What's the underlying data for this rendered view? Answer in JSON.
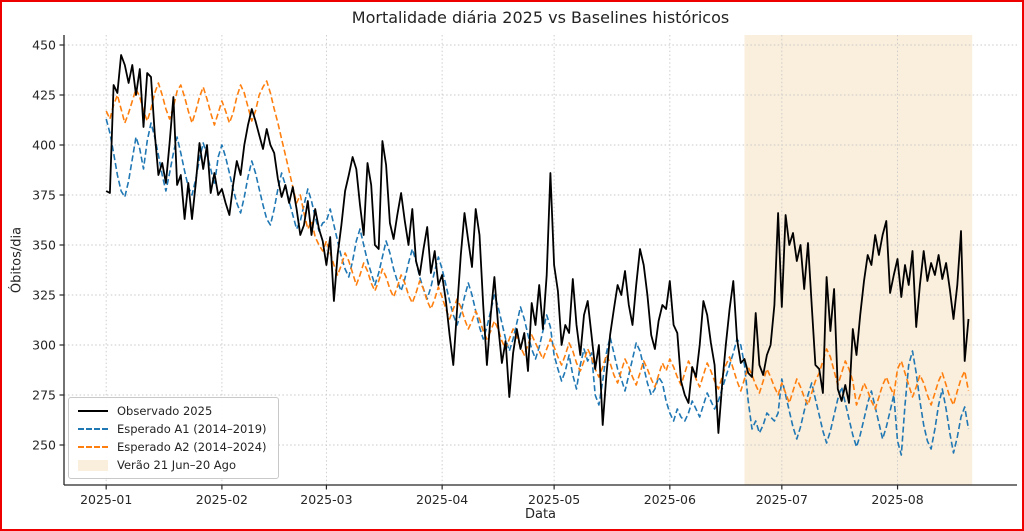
{
  "figure": {
    "border_color": "#ee0000",
    "background": "#ffffff"
  },
  "chart_data": {
    "type": "line",
    "title": "Mortalidade diária 2025 vs Baselines históricos",
    "xlabel": "Data",
    "ylabel": "Óbitos/dia",
    "x_start_date": "2025-01-01",
    "x_end_date": "2025-08-20",
    "n_days": 232,
    "xlim_days": [
      -10.3,
      245
    ],
    "ylim": [
      230,
      455
    ],
    "grid": {
      "show": true,
      "color": "#c9c9c9",
      "style": "dotted"
    },
    "yticks": {
      "values": [
        250,
        275,
        300,
        325,
        350,
        375,
        400,
        425,
        450
      ]
    },
    "xticks": {
      "days": [
        1,
        32,
        60,
        91,
        121,
        152,
        182,
        213
      ],
      "labels": [
        "2025-01",
        "2025-02",
        "2025-03",
        "2025-04",
        "2025-05",
        "2025-06",
        "2025-07",
        "2025-08"
      ]
    },
    "shade": {
      "label": "Verão 21 Jun–20 Ago",
      "day_start": 172,
      "day_end": 233,
      "color": "#faeedc"
    },
    "legend": {
      "position": "lower left"
    },
    "series": [
      {
        "name": "Observado 2025",
        "color": "#000000",
        "style": "solid",
        "width": 1.8,
        "values": [
          377,
          376,
          430,
          426,
          445,
          440,
          431,
          440,
          425,
          438,
          409,
          436,
          434,
          406,
          385,
          391,
          381,
          401,
          424,
          380,
          385,
          363,
          381,
          363,
          381,
          401,
          388,
          400,
          376,
          386,
          375,
          378,
          371,
          365,
          380,
          392,
          385,
          400,
          410,
          418,
          412,
          405,
          398,
          408,
          400,
          396,
          383,
          374,
          380,
          371,
          379,
          368,
          355,
          360,
          372,
          355,
          368,
          358,
          352,
          340,
          354,
          322,
          345,
          360,
          377,
          385,
          394,
          388,
          370,
          355,
          391,
          380,
          350,
          348,
          402,
          390,
          361,
          353,
          365,
          376,
          362,
          350,
          368,
          342,
          335,
          348,
          359,
          336,
          347,
          330,
          335,
          322,
          305,
          290,
          318,
          345,
          366,
          352,
          339,
          368,
          355,
          320,
          290,
          315,
          334,
          310,
          291,
          302,
          274,
          296,
          308,
          298,
          306,
          287,
          321,
          310,
          330,
          308,
          335,
          386,
          340,
          327,
          300,
          310,
          306,
          333,
          310,
          295,
          315,
          322,
          305,
          288,
          300,
          260,
          285,
          305,
          318,
          330,
          325,
          337,
          320,
          310,
          330,
          348,
          340,
          325,
          305,
          298,
          312,
          320,
          318,
          332,
          310,
          306,
          282,
          275,
          271,
          289,
          284,
          300,
          322,
          315,
          301,
          290,
          256,
          280,
          300,
          318,
          332,
          303,
          291,
          293,
          286,
          284,
          316,
          290,
          285,
          295,
          300,
          320,
          366,
          319,
          365,
          350,
          356,
          342,
          350,
          328,
          351,
          320,
          290,
          288,
          276,
          334,
          307,
          328,
          278,
          272,
          280,
          271,
          308,
          295,
          315,
          332,
          345,
          340,
          355,
          345,
          355,
          362,
          326,
          335,
          343,
          324,
          340,
          330,
          347,
          309,
          330,
          347,
          332,
          341,
          335,
          345,
          333,
          341,
          328,
          313,
          330,
          357,
          292,
          313
        ]
      },
      {
        "name": "Esperado A1 (2014–2019)",
        "color": "#1f77b4",
        "style": "dashed",
        "width": 1.6,
        "values": [
          413,
          406,
          396,
          385,
          377,
          374,
          382,
          393,
          404,
          398,
          388,
          402,
          411,
          404,
          395,
          385,
          377,
          386,
          396,
          404,
          396,
          387,
          379,
          375,
          383,
          393,
          401,
          395,
          388,
          380,
          394,
          400,
          394,
          386,
          378,
          371,
          366,
          374,
          384,
          392,
          386,
          378,
          370,
          363,
          360,
          368,
          378,
          386,
          380,
          372,
          365,
          358,
          362,
          370,
          378,
          372,
          364,
          357,
          361,
          362,
          368,
          360,
          352,
          344,
          338,
          334,
          342,
          352,
          358,
          350,
          342,
          336,
          330,
          336,
          344,
          352,
          346,
          338,
          332,
          327,
          333,
          341,
          348,
          342,
          334,
          328,
          323,
          329,
          337,
          344,
          338,
          330,
          322,
          315,
          310,
          316,
          324,
          331,
          325,
          317,
          309,
          303,
          309,
          317,
          325,
          319,
          311,
          303,
          297,
          303,
          311,
          319,
          313,
          305,
          298,
          293,
          299,
          307,
          315,
          309,
          295,
          288,
          282,
          287,
          295,
          285,
          278,
          290,
          298,
          292,
          296,
          275,
          270,
          282,
          296,
          304,
          296,
          288,
          283,
          277,
          285,
          293,
          301,
          297,
          289,
          281,
          275,
          278,
          284,
          281,
          272,
          266,
          262,
          268,
          264,
          262,
          266,
          272,
          268,
          264,
          270,
          276,
          272,
          268,
          272,
          278,
          284,
          290,
          296,
          303,
          300,
          290,
          272,
          258,
          262,
          256,
          260,
          266,
          264,
          262,
          266,
          283,
          275,
          267,
          259,
          253,
          259,
          267,
          275,
          281,
          273,
          265,
          257,
          251,
          257,
          265,
          273,
          279,
          271,
          263,
          255,
          249,
          255,
          263,
          271,
          277,
          269,
          261,
          253,
          259,
          267,
          275,
          252,
          245,
          270,
          290,
          297,
          286,
          272,
          260,
          252,
          248,
          258,
          270,
          278,
          268,
          256,
          246,
          254,
          264,
          269,
          258
        ]
      },
      {
        "name": "Esperado A2 (2014–2024)",
        "color": "#ff7f0e",
        "style": "dashed",
        "width": 1.6,
        "values": [
          417,
          413,
          420,
          425,
          418,
          411,
          416,
          422,
          428,
          424,
          417,
          412,
          418,
          426,
          431,
          425,
          418,
          413,
          419,
          427,
          430,
          424,
          417,
          411,
          417,
          424,
          429,
          423,
          416,
          410,
          416,
          422,
          417,
          411,
          416,
          424,
          430,
          426,
          419,
          412,
          417,
          425,
          429,
          432,
          426,
          418,
          411,
          403,
          395,
          387,
          379,
          371,
          375,
          366,
          358,
          362,
          354,
          350,
          347,
          352,
          346,
          340,
          335,
          340,
          346,
          342,
          336,
          330,
          335,
          341,
          337,
          331,
          327,
          332,
          338,
          334,
          328,
          324,
          329,
          335,
          331,
          325,
          321,
          326,
          332,
          328,
          322,
          318,
          323,
          329,
          324,
          318,
          313,
          318,
          323,
          319,
          313,
          308,
          312,
          317,
          313,
          307,
          303,
          307,
          312,
          308,
          302,
          298,
          303,
          308,
          304,
          299,
          295,
          300,
          305,
          301,
          297,
          293,
          298,
          303,
          299,
          294,
          290,
          295,
          301,
          297,
          291,
          287,
          292,
          298,
          294,
          288,
          284,
          289,
          295,
          291,
          285,
          281,
          287,
          293,
          289,
          284,
          280,
          286,
          292,
          288,
          283,
          279,
          285,
          291,
          287,
          293,
          289,
          284,
          280,
          286,
          292,
          288,
          283,
          279,
          285,
          291,
          287,
          282,
          278,
          284,
          290,
          294,
          288,
          282,
          277,
          283,
          289,
          285,
          280,
          276,
          282,
          288,
          284,
          279,
          275,
          281,
          276,
          271,
          277,
          283,
          279,
          274,
          270,
          276,
          282,
          286,
          292,
          298,
          294,
          287,
          280,
          286,
          292,
          288,
          282,
          270,
          275,
          281,
          277,
          272,
          268,
          274,
          280,
          284,
          279,
          275,
          288,
          292,
          286,
          280,
          274,
          279,
          285,
          281,
          275,
          270,
          276,
          282,
          286,
          280,
          274,
          270,
          277,
          283,
          287,
          277
        ]
      }
    ]
  }
}
